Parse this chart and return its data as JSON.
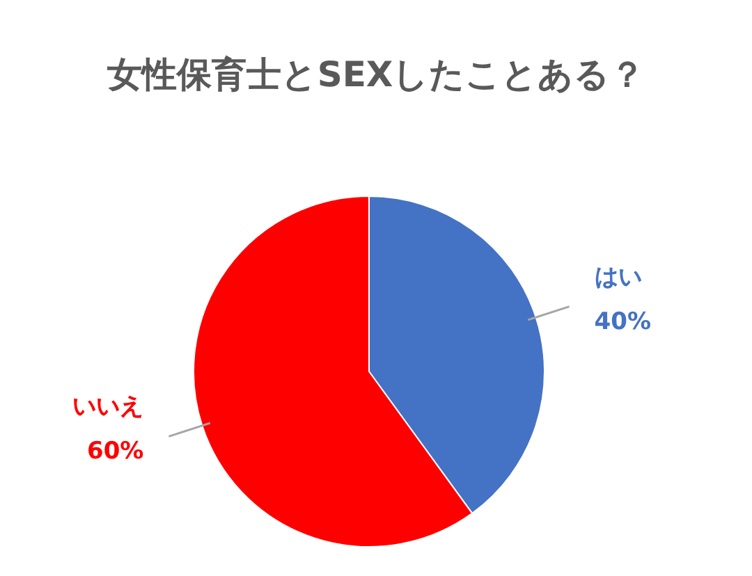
{
  "chart_data": {
    "type": "pie",
    "title": "女性保育士とSEXしたことある？",
    "categories": [
      "はい",
      "いいえ"
    ],
    "values": [
      40,
      60
    ],
    "colors": [
      "#4472c4",
      "#ff0000"
    ],
    "value_labels": [
      "40%",
      "60%"
    ]
  }
}
